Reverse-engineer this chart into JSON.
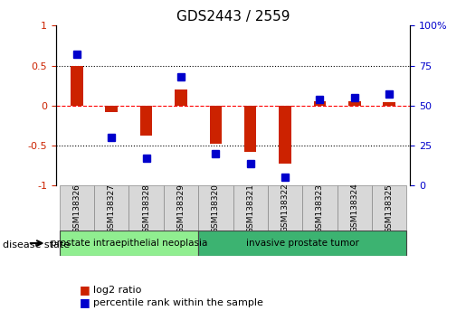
{
  "title": "GDS2443 / 2559",
  "samples": [
    "GSM138326",
    "GSM138327",
    "GSM138328",
    "GSM138329",
    "GSM138320",
    "GSM138321",
    "GSM138322",
    "GSM138323",
    "GSM138324",
    "GSM138325"
  ],
  "log2_ratio": [
    0.5,
    -0.08,
    -0.38,
    0.2,
    -0.48,
    -0.58,
    -0.72,
    0.05,
    0.05,
    0.04
  ],
  "percentile_rank": [
    82,
    30,
    17,
    68,
    20,
    14,
    5,
    54,
    55,
    57
  ],
  "disease_groups": [
    {
      "label": "prostate intraepithelial neoplasia",
      "start": 0,
      "end": 4,
      "color": "#90EE90"
    },
    {
      "label": "invasive prostate tumor",
      "start": 4,
      "end": 10,
      "color": "#3CB371"
    }
  ],
  "bar_color_red": "#CC2200",
  "marker_color_blue": "#0000CC",
  "ylim_left": [
    -1,
    1
  ],
  "ylim_right": [
    0,
    100
  ],
  "yticks_left": [
    -1,
    -0.5,
    0,
    0.5,
    1
  ],
  "ytick_labels_left": [
    "-1",
    "-0.5",
    "0",
    "0.5",
    "1"
  ],
  "yticks_right": [
    0,
    25,
    50,
    75,
    100
  ],
  "ytick_labels_right": [
    "0",
    "25",
    "50",
    "75",
    "100%"
  ],
  "hlines": [
    0.5,
    0.0,
    -0.5
  ],
  "hline_styles": [
    "dotted",
    "dashed",
    "dotted"
  ],
  "hline_colors": [
    "black",
    "red",
    "black"
  ],
  "legend_items": [
    {
      "label": "log2 ratio",
      "color": "#CC2200",
      "marker": "s"
    },
    {
      "label": "percentile rank within the sample",
      "color": "#0000CC",
      "marker": "s"
    }
  ],
  "disease_state_label": "disease state",
  "background_color": "#ffffff",
  "bar_width": 0.35,
  "marker_size": 6
}
